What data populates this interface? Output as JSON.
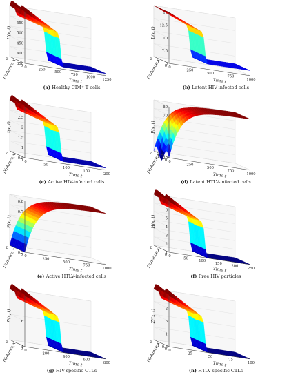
{
  "panels": [
    {
      "id": "a",
      "caption_letter": "(a)",
      "caption_text": "Healthy CD4⁺ T cells",
      "zlabel": "U(x, t)",
      "xlabel": "Time t",
      "ylabel": "Distance x",
      "z_ticks": [
        "350",
        "400",
        "450",
        "500",
        "550",
        "600"
      ],
      "t_ticks": [
        "0",
        "250",
        "500",
        "750",
        "1000",
        "1250"
      ],
      "x_ticks": [
        "0",
        "1",
        "2"
      ]
    },
    {
      "id": "b",
      "caption_letter": "(b)",
      "caption_text": "Latent HIV-infected cells",
      "zlabel": "L(x, t)",
      "xlabel": "Time t",
      "ylabel": "Distance x",
      "z_ticks": [
        "5",
        "7.5",
        "10",
        "12.5",
        "15"
      ],
      "t_ticks": [
        "0",
        "250",
        "500",
        "750",
        "1000"
      ],
      "x_ticks": [
        "0",
        "1",
        "2"
      ]
    },
    {
      "id": "c",
      "caption_letter": "(c)",
      "caption_text": "Active HIV-infected cells",
      "zlabel": "I(x, t)",
      "xlabel": "Time t",
      "ylabel": "Distance x",
      "z_ticks": [
        "0.5",
        "1",
        "1.5",
        "2",
        "2.5",
        "3"
      ],
      "t_ticks": [
        "0",
        "50",
        "100",
        "150",
        "200"
      ],
      "x_ticks": [
        "0",
        "1",
        "2"
      ]
    },
    {
      "id": "d",
      "caption_letter": "(d)",
      "caption_text": "Latent HTLV-infected cells",
      "zlabel": "P(x, t)",
      "xlabel": "Time t",
      "ylabel": "Distance x",
      "z_ticks": [
        "20",
        "30",
        "40",
        "50",
        "60",
        "70",
        "80"
      ],
      "t_ticks": [
        "0",
        "250",
        "500",
        "750",
        "1000"
      ],
      "x_ticks": [
        "0",
        "1",
        "2"
      ]
    },
    {
      "id": "e",
      "caption_letter": "(e)",
      "caption_text": "Active HTLV-infected cells",
      "zlabel": "E(x, t)",
      "xlabel": "Time t",
      "ylabel": "Distance x",
      "z_ticks": [
        "0.3",
        "0.4",
        "0.5",
        "0.6",
        "0.7",
        "0.8"
      ],
      "t_ticks": [
        "0",
        "250",
        "500",
        "750",
        "1000"
      ],
      "x_ticks": [
        "0",
        "1",
        "2"
      ]
    },
    {
      "id": "f",
      "caption_letter": "(f)",
      "caption_text": "Free HIV particles",
      "zlabel": "H(x, t)",
      "xlabel": "Time t",
      "ylabel": "Distance x",
      "z_ticks": [
        "1",
        "2",
        "3",
        "4",
        "5",
        "6",
        "7"
      ],
      "t_ticks": [
        "0",
        "50",
        "100",
        "150",
        "200",
        "250"
      ],
      "x_ticks": [
        "0",
        "1",
        "2"
      ]
    },
    {
      "id": "g",
      "caption_letter": "(g)",
      "caption_text": "HIV-specific CTLs",
      "zlabel": "Zᴵ(x, t)",
      "xlabel": "Time t",
      "ylabel": "Distance x",
      "z_ticks": [
        "4",
        "6",
        "8"
      ],
      "t_ticks": [
        "0",
        "200",
        "400",
        "600",
        "800"
      ],
      "x_ticks": [
        "0",
        "1",
        "2"
      ]
    },
    {
      "id": "h",
      "caption_letter": "(h)",
      "caption_text": "HTLV-specific CTLs",
      "zlabel": "Zᴱ(x, t)",
      "xlabel": "Time t",
      "ylabel": "Distance x",
      "z_ticks": [
        "0.5",
        "1",
        "1.5",
        "2",
        "2.5"
      ],
      "t_ticks": [
        "0",
        "25",
        "50",
        "75",
        "100"
      ],
      "x_ticks": [
        "0",
        "1",
        "2"
      ]
    }
  ],
  "chart_data": [
    {
      "type": "surface",
      "panel": "a",
      "description_ref": "U(x,t)",
      "shape": "decay",
      "t_range": [
        0,
        1250
      ],
      "x_range": [
        0,
        2
      ],
      "z_range": [
        350,
        600
      ],
      "z_start": 600,
      "z_end": 360,
      "wiggles": 3,
      "colormap": "jet"
    },
    {
      "type": "surface",
      "panel": "b",
      "description_ref": "L(x,t)",
      "shape": "decay",
      "t_range": [
        0,
        1000
      ],
      "x_range": [
        0,
        2
      ],
      "z_range": [
        5,
        15
      ],
      "z_start": 15,
      "z_end": 6,
      "wiggles": 0,
      "colormap": "jet"
    },
    {
      "type": "surface",
      "panel": "c",
      "description_ref": "I(x,t)",
      "shape": "decay",
      "t_range": [
        0,
        200
      ],
      "x_range": [
        0,
        2
      ],
      "z_range": [
        0.5,
        3
      ],
      "z_start": 3,
      "z_end": 0.6,
      "wiggles": 3,
      "colormap": "jet"
    },
    {
      "type": "surface",
      "panel": "d",
      "description_ref": "P(x,t)",
      "shape": "growth",
      "t_range": [
        0,
        1000
      ],
      "x_range": [
        0,
        2
      ],
      "z_range": [
        20,
        80
      ],
      "z_start": 20,
      "z_end": 80,
      "wiggles": 3,
      "colormap": "jet"
    },
    {
      "type": "surface",
      "panel": "e",
      "description_ref": "E(x,t)",
      "shape": "growth",
      "t_range": [
        0,
        1000
      ],
      "x_range": [
        0,
        2
      ],
      "z_range": [
        0.3,
        0.8
      ],
      "z_start": 0.3,
      "z_end": 0.8,
      "wiggles": 0,
      "colormap": "jet"
    },
    {
      "type": "surface",
      "panel": "f",
      "description_ref": "H(x,t)",
      "shape": "decay",
      "t_range": [
        0,
        250
      ],
      "x_range": [
        0,
        2
      ],
      "z_range": [
        1,
        7
      ],
      "z_start": 7,
      "z_end": 1,
      "wiggles": 3,
      "colormap": "jet"
    },
    {
      "type": "surface",
      "panel": "g",
      "description_ref": "Z^I(x,t)",
      "shape": "decay",
      "t_range": [
        0,
        800
      ],
      "x_range": [
        0,
        2
      ],
      "z_range": [
        3,
        9
      ],
      "z_start": 9,
      "z_end": 3,
      "wiggles": 3,
      "colormap": "jet"
    },
    {
      "type": "surface",
      "panel": "h",
      "description_ref": "Z^E(x,t)",
      "shape": "decay",
      "t_range": [
        0,
        100
      ],
      "x_range": [
        0,
        2
      ],
      "z_range": [
        0.2,
        2.5
      ],
      "z_start": 2.5,
      "z_end": 0.2,
      "wiggles": 3,
      "colormap": "jet"
    }
  ]
}
